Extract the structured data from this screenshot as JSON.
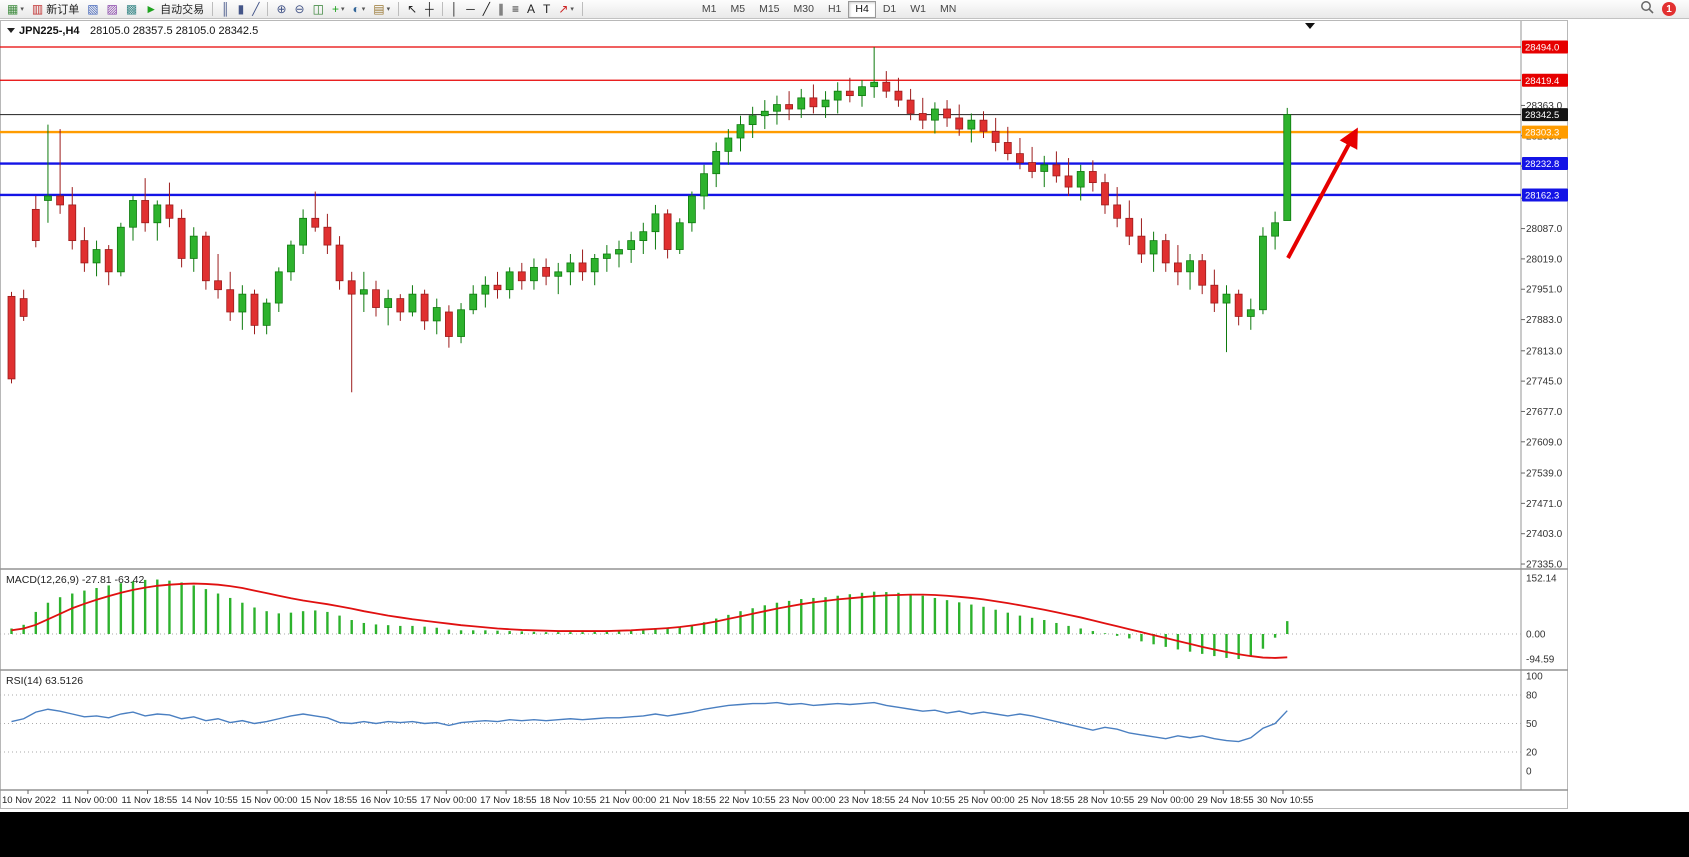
{
  "toolbar": {
    "icons": [
      {
        "name": "new-chart-icon",
        "glyph": "▦",
        "color": "#3c8a3c",
        "caret": true
      },
      {
        "name": "new-order-button",
        "glyph": "▥",
        "color": "#c03030",
        "label": "新订单"
      },
      {
        "name": "chart-window-icon",
        "glyph": "▧",
        "color": "#4466bb"
      },
      {
        "name": "data-window-icon",
        "glyph": "▨",
        "color": "#8844aa"
      },
      {
        "name": "strategy-tester-icon",
        "glyph": "▩",
        "color": "#3c8a8a"
      },
      {
        "name": "autotrading-button",
        "glyph": "►",
        "color": "#1fa31f",
        "label": "自动交易"
      },
      {
        "name": "sep"
      },
      {
        "name": "ohlc-bars-icon",
        "glyph": "║",
        "color": "#445588"
      },
      {
        "name": "candlestick-icon",
        "glyph": "▮",
        "color": "#445588"
      },
      {
        "name": "line-chart-icon",
        "glyph": "╱",
        "color": "#445588"
      },
      {
        "name": "sep"
      },
      {
        "name": "zoom-in-icon",
        "glyph": "⊕",
        "color": "#445588"
      },
      {
        "name": "zoom-out-icon",
        "glyph": "⊖",
        "color": "#445588"
      },
      {
        "name": "tile-windows-icon",
        "glyph": "◫",
        "color": "#2f7f2f"
      },
      {
        "name": "indicators-icon",
        "glyph": "+",
        "color": "#1fa31f",
        "caret": true
      },
      {
        "name": "periods-icon",
        "glyph": "◐",
        "color": "#336699",
        "caret": true
      },
      {
        "name": "templates-icon",
        "glyph": "▤",
        "color": "#997733",
        "caret": true
      },
      {
        "name": "sep"
      },
      {
        "name": "cursor-icon",
        "glyph": "↖",
        "color": "#222222"
      },
      {
        "name": "crosshair-icon",
        "glyph": "┼",
        "color": "#222222"
      },
      {
        "name": "sep"
      },
      {
        "name": "vertical-line-icon",
        "glyph": "│",
        "color": "#222222"
      },
      {
        "name": "horizontal-line-icon",
        "glyph": "─",
        "color": "#222222"
      },
      {
        "name": "trendline-icon",
        "glyph": "╱",
        "color": "#222222"
      },
      {
        "name": "channel-icon",
        "glyph": "∥",
        "color": "#222222"
      },
      {
        "name": "fibonacci-icon",
        "glyph": "≡",
        "color": "#222222"
      },
      {
        "name": "text-icon",
        "glyph": "A",
        "color": "#222222"
      },
      {
        "name": "label-icon",
        "glyph": "T",
        "color": "#222222"
      },
      {
        "name": "arrows-icon",
        "glyph": "↗",
        "color": "#cc2222",
        "caret": true
      },
      {
        "name": "sep"
      }
    ],
    "timeframes": {
      "items": [
        "M1",
        "M5",
        "M15",
        "M30",
        "H1",
        "H4",
        "D1",
        "W1",
        "MN"
      ],
      "active": "H4"
    },
    "notification_count": "1"
  },
  "chart_header": {
    "symbol": "JPN225-,H4",
    "ohlc": "28105.0 28357.5 28105.0 28342.5"
  },
  "colors": {
    "up": "#2db22d",
    "up_border": "#0e7a0e",
    "down": "#e03030",
    "down_border": "#9c1c1c",
    "macd_hist": "#2db22d",
    "macd_signal": "#e01010",
    "rsi_line": "#4a7fc1",
    "hline_red": "#e60000",
    "hline_orange": "#ff9c00",
    "hline_blue": "#1414e6",
    "bid": "#3a3a3a",
    "arrow": "#e60000",
    "axis_text": "#333333"
  },
  "price_scale": {
    "gridline_labels": [
      28363,
      28295,
      28227,
      28155,
      28087,
      28019,
      27951,
      27883,
      27813,
      27745,
      27677,
      27609,
      27539,
      27471,
      27403,
      27335
    ],
    "badges": [
      {
        "text": "28494.0",
        "bg": "#e60000",
        "price": 28494.0
      },
      {
        "text": "28419.4",
        "bg": "#e60000",
        "price": 28419.4
      },
      {
        "text": "28342.5",
        "bg": "#141414",
        "price": 28342.5
      },
      {
        "text": "28303.3",
        "bg": "#ff9c00",
        "price": 28303.3
      },
      {
        "text": "28232.8",
        "bg": "#1414e6",
        "price": 28232.8
      },
      {
        "text": "28162.3",
        "bg": "#1414e6",
        "price": 28162.3
      }
    ]
  },
  "chart_data": {
    "type": "candlestick",
    "symbol": "JPN225-",
    "timeframe": "H4",
    "ohlc_current": {
      "open": 28105.0,
      "high": 28357.5,
      "low": 28105.0,
      "close": 28342.5
    },
    "price_range": [
      27335,
      28494
    ],
    "candles": [
      [
        27935,
        27945,
        27740,
        27750
      ],
      [
        27930,
        27950,
        27880,
        27890
      ],
      [
        28130,
        28160,
        28045,
        28060
      ],
      [
        28150,
        28320,
        28100,
        28160
      ],
      [
        28160,
        28310,
        28120,
        28140
      ],
      [
        28140,
        28180,
        28040,
        28060
      ],
      [
        28060,
        28090,
        27990,
        28010
      ],
      [
        28010,
        28060,
        27980,
        28040
      ],
      [
        28040,
        28050,
        27960,
        27990
      ],
      [
        27990,
        28100,
        27980,
        28090
      ],
      [
        28090,
        28160,
        28060,
        28150
      ],
      [
        28150,
        28200,
        28080,
        28100
      ],
      [
        28100,
        28150,
        28060,
        28140
      ],
      [
        28140,
        28190,
        28090,
        28110
      ],
      [
        28110,
        28130,
        28000,
        28020
      ],
      [
        28020,
        28090,
        27990,
        28070
      ],
      [
        28070,
        28080,
        27950,
        27970
      ],
      [
        27970,
        28030,
        27930,
        27950
      ],
      [
        27950,
        27990,
        27880,
        27900
      ],
      [
        27900,
        27960,
        27860,
        27940
      ],
      [
        27940,
        27950,
        27850,
        27870
      ],
      [
        27870,
        27930,
        27850,
        27920
      ],
      [
        27920,
        28000,
        27900,
        27990
      ],
      [
        27990,
        28060,
        27970,
        28050
      ],
      [
        28050,
        28130,
        28030,
        28110
      ],
      [
        28110,
        28170,
        28080,
        28090
      ],
      [
        28090,
        28120,
        28030,
        28050
      ],
      [
        28050,
        28070,
        27950,
        27970
      ],
      [
        27970,
        27990,
        27720,
        27940
      ],
      [
        27940,
        27990,
        27900,
        27950
      ],
      [
        27950,
        27970,
        27890,
        27910
      ],
      [
        27910,
        27950,
        27870,
        27930
      ],
      [
        27930,
        27940,
        27880,
        27900
      ],
      [
        27900,
        27960,
        27890,
        27940
      ],
      [
        27940,
        27950,
        27860,
        27880
      ],
      [
        27880,
        27930,
        27850,
        27910
      ],
      [
        27900,
        27915,
        27820,
        27845
      ],
      [
        27845,
        27920,
        27830,
        27905
      ],
      [
        27905,
        27960,
        27895,
        27940
      ],
      [
        27940,
        27980,
        27910,
        27960
      ],
      [
        27960,
        27990,
        27930,
        27950
      ],
      [
        27950,
        28000,
        27930,
        27990
      ],
      [
        27990,
        28010,
        27950,
        27970
      ],
      [
        27970,
        28020,
        27950,
        28000
      ],
      [
        28000,
        28020,
        27960,
        27980
      ],
      [
        27980,
        28010,
        27940,
        27990
      ],
      [
        27990,
        28030,
        27960,
        28010
      ],
      [
        28010,
        28040,
        27970,
        27990
      ],
      [
        27990,
        28030,
        27960,
        28020
      ],
      [
        28020,
        28050,
        27990,
        28030
      ],
      [
        28030,
        28060,
        28000,
        28040
      ],
      [
        28040,
        28080,
        28010,
        28060
      ],
      [
        28060,
        28100,
        28030,
        28080
      ],
      [
        28080,
        28140,
        28040,
        28120
      ],
      [
        28120,
        28130,
        28020,
        28040
      ],
      [
        28040,
        28110,
        28030,
        28100
      ],
      [
        28100,
        28170,
        28080,
        28160
      ],
      [
        28160,
        28230,
        28130,
        28210
      ],
      [
        28210,
        28280,
        28180,
        28260
      ],
      [
        28260,
        28310,
        28230,
        28290
      ],
      [
        28290,
        28340,
        28260,
        28320
      ],
      [
        28320,
        28360,
        28290,
        28340
      ],
      [
        28340,
        28375,
        28310,
        28350
      ],
      [
        28350,
        28385,
        28320,
        28365
      ],
      [
        28365,
        28395,
        28330,
        28355
      ],
      [
        28355,
        28400,
        28335,
        28380
      ],
      [
        28380,
        28410,
        28345,
        28360
      ],
      [
        28360,
        28395,
        28335,
        28375
      ],
      [
        28375,
        28415,
        28345,
        28395
      ],
      [
        28395,
        28425,
        28370,
        28385
      ],
      [
        28385,
        28420,
        28360,
        28405
      ],
      [
        28405,
        28494,
        28380,
        28415
      ],
      [
        28415,
        28440,
        28380,
        28395
      ],
      [
        28395,
        28425,
        28360,
        28375
      ],
      [
        28375,
        28400,
        28330,
        28345
      ],
      [
        28345,
        28380,
        28310,
        28330
      ],
      [
        28330,
        28370,
        28300,
        28355
      ],
      [
        28355,
        28375,
        28315,
        28335
      ],
      [
        28335,
        28365,
        28295,
        28310
      ],
      [
        28310,
        28345,
        28280,
        28330
      ],
      [
        28330,
        28350,
        28290,
        28305
      ],
      [
        28305,
        28335,
        28260,
        28280
      ],
      [
        28280,
        28315,
        28240,
        28255
      ],
      [
        28255,
        28290,
        28220,
        28235
      ],
      [
        28235,
        28270,
        28200,
        28215
      ],
      [
        28215,
        28250,
        28180,
        28230
      ],
      [
        28230,
        28260,
        28190,
        28205
      ],
      [
        28205,
        28245,
        28160,
        28180
      ],
      [
        28180,
        28230,
        28150,
        28215
      ],
      [
        28215,
        28240,
        28170,
        28190
      ],
      [
        28190,
        28210,
        28120,
        28140
      ],
      [
        28140,
        28180,
        28090,
        28110
      ],
      [
        28110,
        28150,
        28050,
        28070
      ],
      [
        28070,
        28110,
        28010,
        28030
      ],
      [
        28030,
        28080,
        27990,
        28060
      ],
      [
        28060,
        28075,
        27990,
        28010
      ],
      [
        28010,
        28050,
        27960,
        27990
      ],
      [
        27990,
        28030,
        27950,
        28015
      ],
      [
        28015,
        28030,
        27940,
        27960
      ],
      [
        27960,
        27995,
        27900,
        27920
      ],
      [
        27920,
        27960,
        27810,
        27940
      ],
      [
        27940,
        27950,
        27870,
        27890
      ],
      [
        27890,
        27930,
        27860,
        27905
      ],
      [
        27905,
        28090,
        27895,
        28070
      ],
      [
        28070,
        28125,
        28040,
        28100
      ],
      [
        28105,
        28357.5,
        28105,
        28342.5
      ]
    ],
    "horizontal_lines": [
      {
        "price": 28494.0,
        "color": "red"
      },
      {
        "price": 28419.4,
        "color": "red"
      },
      {
        "price": 28303.3,
        "color": "orange"
      },
      {
        "price": 28232.8,
        "color": "blue"
      },
      {
        "price": 28162.3,
        "color": "blue"
      }
    ],
    "bid_price": 28342.5,
    "time_labels": [
      "10 Nov 2022",
      "11 Nov 00:00",
      "11 Nov 18:55",
      "14 Nov 10:55",
      "15 Nov 00:00",
      "15 Nov 18:55",
      "16 Nov 10:55",
      "17 Nov 00:00",
      "17 Nov 18:55",
      "18 Nov 10:55",
      "21 Nov 00:00",
      "21 Nov 18:55",
      "22 Nov 10:55",
      "23 Nov 00:00",
      "23 Nov 18:55",
      "24 Nov 10:55",
      "25 Nov 00:00",
      "25 Nov 18:55",
      "28 Nov 10:55",
      "29 Nov 00:00",
      "29 Nov 18:55",
      "30 Nov 10:55"
    ],
    "indicators": {
      "macd": {
        "label": "MACD(12,26,9) -27.81 -63.42",
        "scale": [
          152.14,
          0.0,
          -94.59
        ],
        "histogram": [
          15,
          25,
          60,
          85,
          100,
          110,
          118,
          125,
          132,
          138,
          143,
          147,
          148,
          145,
          140,
          132,
          122,
          110,
          98,
          85,
          72,
          62,
          56,
          58,
          62,
          64,
          60,
          50,
          38,
          30,
          26,
          24,
          22,
          22,
          20,
          17,
          12,
          10,
          10,
          10,
          9,
          8,
          7,
          6,
          5,
          5,
          5,
          5,
          6,
          6,
          7,
          9,
          12,
          16,
          18,
          20,
          25,
          32,
          42,
          52,
          62,
          70,
          78,
          85,
          90,
          95,
          98,
          100,
          104,
          108,
          112,
          115,
          114,
          112,
          108,
          104,
          98,
          92,
          86,
          80,
          74,
          66,
          58,
          50,
          44,
          38,
          30,
          22,
          15,
          8,
          2,
          -5,
          -12,
          -20,
          -28,
          -35,
          -42,
          -48,
          -54,
          -60,
          -65,
          -68,
          -60,
          -40,
          -10,
          35
        ],
        "signal": [
          10,
          15,
          25,
          40,
          55,
          70,
          82,
          93,
          103,
          112,
          120,
          126,
          131,
          134,
          136,
          137,
          136,
          134,
          130,
          125,
          118,
          111,
          104,
          97,
          91,
          86,
          81,
          75,
          69,
          62,
          56,
          50,
          45,
          40,
          36,
          32,
          28,
          24,
          21,
          18,
          15,
          13,
          11,
          10,
          9,
          8,
          8,
          8,
          8,
          8,
          9,
          10,
          12,
          14,
          16,
          19,
          23,
          28,
          34,
          41,
          48,
          55,
          62,
          69,
          75,
          81,
          86,
          90,
          94,
          97,
          100,
          103,
          105,
          106,
          107,
          107,
          106,
          104,
          101,
          98,
          94,
          89,
          84,
          78,
          72,
          66,
          59,
          52,
          45,
          37,
          29,
          21,
          13,
          5,
          -3,
          -11,
          -19,
          -27,
          -35,
          -42,
          -49,
          -55,
          -60,
          -64,
          -65,
          -63.4
        ]
      },
      "rsi": {
        "label": "RSI(14) 63.5126",
        "scale": [
          100,
          80,
          50,
          20,
          0
        ],
        "levels": [
          80,
          50,
          20
        ],
        "values": [
          52,
          55,
          62,
          65,
          63,
          60,
          57,
          58,
          56,
          60,
          62,
          58,
          60,
          59,
          55,
          57,
          53,
          55,
          51,
          53,
          50,
          52,
          55,
          58,
          60,
          58,
          56,
          51,
          50,
          52,
          50,
          52,
          51,
          52,
          50,
          51,
          48,
          51,
          52,
          53,
          52,
          54,
          53,
          54,
          53,
          54,
          55,
          54,
          55,
          56,
          56,
          57,
          58,
          60,
          58,
          60,
          62,
          65,
          67,
          69,
          70,
          71,
          71,
          72,
          70,
          71,
          69,
          70,
          71,
          70,
          71,
          72,
          69,
          67,
          65,
          63,
          64,
          61,
          63,
          60,
          62,
          60,
          58,
          60,
          58,
          55,
          52,
          49,
          46,
          43,
          46,
          44,
          40,
          38,
          36,
          34,
          37,
          35,
          37,
          34,
          32,
          31,
          35,
          45,
          50,
          63.5
        ]
      }
    },
    "annotation": {
      "type": "arrow",
      "direction": "up-right",
      "color": "#e60000"
    }
  }
}
